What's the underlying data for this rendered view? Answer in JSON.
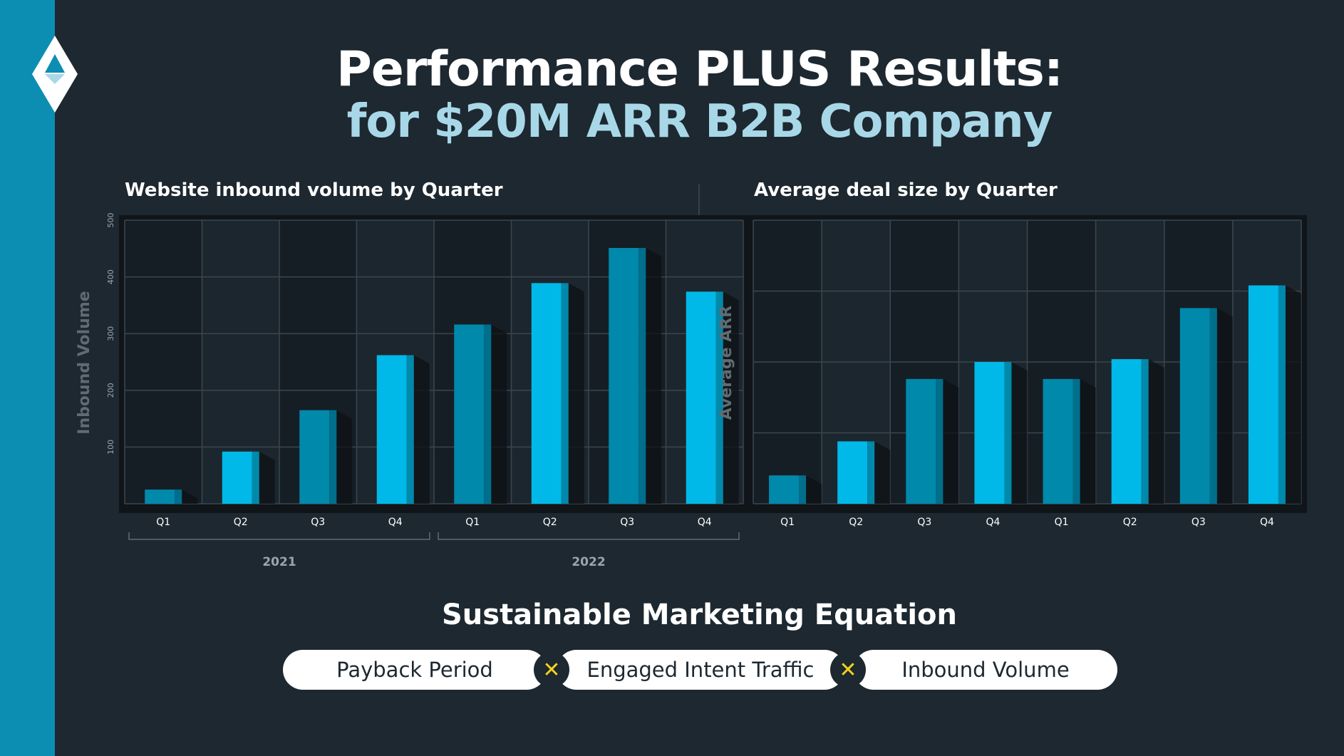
{
  "header": {
    "title_line1": "Performance PLUS Results:",
    "title_line2": "for $20M ARR B2B Company"
  },
  "colors": {
    "accent_bright": "#00b9e8",
    "accent_dark": "#0089ab",
    "title_light": "#a8d8e8",
    "operator_yellow": "#f3d21b"
  },
  "chart_data": [
    {
      "type": "bar",
      "title": "Website inbound volume by Quarter",
      "xlabel": "",
      "ylabel": "Inbound Volume",
      "ylim": [
        0,
        500
      ],
      "yticks": [
        "100",
        "200",
        "300",
        "400",
        "500"
      ],
      "categories": [
        "Q1",
        "Q2",
        "Q3",
        "Q4",
        "Q1",
        "Q2",
        "Q3",
        "Q4"
      ],
      "groups": [
        {
          "label": "2021",
          "start": 0,
          "end": 3
        },
        {
          "label": "2022",
          "start": 4,
          "end": 7
        }
      ],
      "values": [
        25,
        92,
        165,
        262,
        316,
        389,
        451,
        374
      ],
      "grid": true
    },
    {
      "type": "bar",
      "title": "Average deal size by Quarter",
      "xlabel": "",
      "ylabel": "Average ARR",
      "ylim": [
        0,
        100
      ],
      "yticks": [],
      "categories": [
        "Q1",
        "Q2",
        "Q3",
        "Q4",
        "Q1",
        "Q2",
        "Q3",
        "Q4"
      ],
      "values": [
        10,
        22,
        44,
        50,
        44,
        51,
        69,
        77
      ],
      "grid": true
    }
  ],
  "equation": {
    "title": "Sustainable Marketing Equation",
    "terms": [
      "Payback Period",
      "Engaged Intent Traffic",
      "Inbound Volume"
    ],
    "operator": "✕"
  }
}
